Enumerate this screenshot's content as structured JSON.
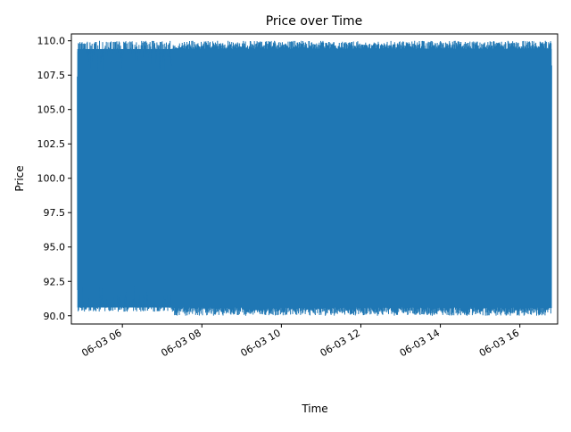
{
  "chart_data": {
    "type": "line",
    "title": "Price over Time",
    "xlabel": "Time",
    "ylabel": "Price",
    "x_tick_labels": [
      "06-03 06",
      "06-03 08",
      "06-03 10",
      "06-03 12",
      "06-03 14",
      "06-03 16"
    ],
    "x_ticks": [
      "2024-06-03T06:00",
      "2024-06-03T08:00",
      "2024-06-03T10:00",
      "2024-06-03T12:00",
      "2024-06-03T14:00",
      "2024-06-03T16:00"
    ],
    "xlim": [
      "2024-06-03T04:43",
      "2024-06-03T16:57"
    ],
    "y_ticks": [
      "90.0",
      "92.5",
      "95.0",
      "97.5",
      "100.0",
      "102.5",
      "105.0",
      "107.5",
      "110.0"
    ],
    "ylim": [
      89.4,
      110.5
    ],
    "grid": false,
    "series": [
      {
        "color": "#1f77b4",
        "x_start": "2024-06-03T04:52",
        "x_end": "2024-06-03T16:48",
        "y_min": 90.0,
        "y_max": 110.0,
        "first_value": 107.4,
        "last_value": 108.2
      }
    ]
  }
}
